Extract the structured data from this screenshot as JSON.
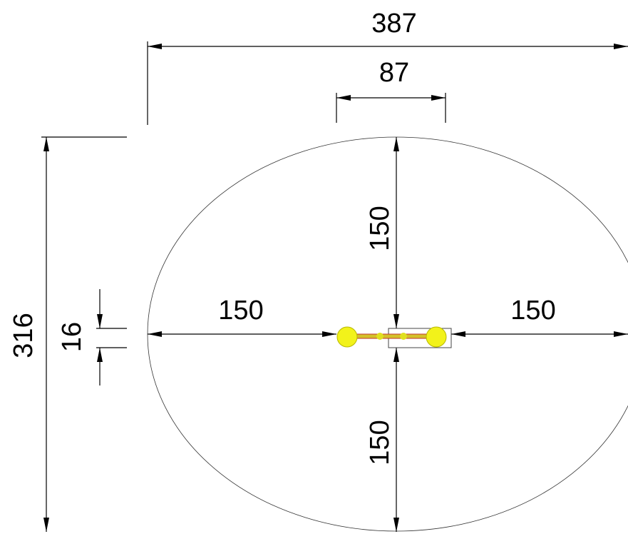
{
  "dimensions": {
    "overall_width": "387",
    "center_width": "87",
    "overall_height": "316",
    "offset": "16",
    "left_radius": "150",
    "right_radius": "150",
    "top_radius": "150",
    "bottom_radius": "150"
  }
}
